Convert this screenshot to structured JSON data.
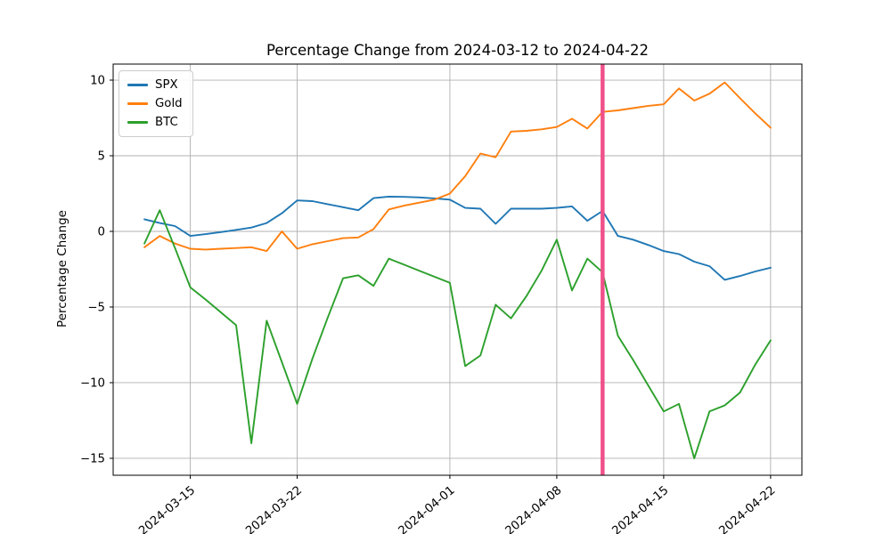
{
  "chart_data": {
    "type": "line",
    "title": "Percentage Change from 2024-03-12 to 2024-04-22",
    "xlabel": "",
    "ylabel": "Percentage Change",
    "grid": true,
    "legend_position": "upper left",
    "x": [
      "2024-03-12",
      "2024-03-13",
      "2024-03-14",
      "2024-03-15",
      "2024-03-16",
      "2024-03-17",
      "2024-03-18",
      "2024-03-19",
      "2024-03-20",
      "2024-03-21",
      "2024-03-22",
      "2024-03-23",
      "2024-03-24",
      "2024-03-25",
      "2024-03-26",
      "2024-03-27",
      "2024-03-28",
      "2024-03-29",
      "2024-03-30",
      "2024-03-31",
      "2024-04-01",
      "2024-04-02",
      "2024-04-03",
      "2024-04-04",
      "2024-04-05",
      "2024-04-06",
      "2024-04-07",
      "2024-04-08",
      "2024-04-09",
      "2024-04-10",
      "2024-04-11",
      "2024-04-12",
      "2024-04-13",
      "2024-04-14",
      "2024-04-15",
      "2024-04-16",
      "2024-04-17",
      "2024-04-18",
      "2024-04-19",
      "2024-04-20",
      "2024-04-21",
      "2024-04-22"
    ],
    "series": [
      {
        "name": "SPX",
        "color": "#1f77b4",
        "values": [
          0.8,
          0.55,
          0.35,
          -0.3,
          -0.18,
          -0.05,
          0.1,
          0.25,
          0.55,
          1.2,
          2.05,
          2.0,
          1.8,
          1.6,
          1.4,
          2.2,
          2.3,
          2.28,
          2.25,
          2.18,
          2.1,
          1.55,
          1.5,
          0.5,
          1.5,
          1.5,
          1.5,
          1.55,
          1.65,
          0.7,
          1.35,
          -0.3,
          -0.55,
          -0.9,
          -1.3,
          -1.5,
          -2.0,
          -2.3,
          -3.2,
          -2.95,
          -2.65,
          -2.4
        ]
      },
      {
        "name": "Gold",
        "color": "#ff7f0e",
        "values": [
          -1.05,
          -0.3,
          -0.8,
          -1.15,
          -1.2,
          -1.15,
          -1.1,
          -1.05,
          -1.3,
          0.0,
          -1.15,
          -0.85,
          -0.65,
          -0.45,
          -0.4,
          0.15,
          1.45,
          1.7,
          1.9,
          2.1,
          2.5,
          3.65,
          5.15,
          4.9,
          6.6,
          6.65,
          6.75,
          6.9,
          7.45,
          6.8,
          7.9,
          8.0,
          8.15,
          8.3,
          8.4,
          9.45,
          8.65,
          9.1,
          9.85,
          8.8,
          7.8,
          6.85
        ]
      },
      {
        "name": "BTC",
        "color": "#2ca02c",
        "values": [
          -0.8,
          1.4,
          -1.1,
          -3.7,
          -4.5,
          -5.35,
          -6.2,
          -14.0,
          -5.9,
          -8.65,
          -11.4,
          -8.4,
          -5.7,
          -3.1,
          -2.9,
          -3.6,
          -1.8,
          -2.2,
          -2.6,
          -3.0,
          -3.4,
          -8.9,
          -8.2,
          -4.85,
          -5.75,
          -4.3,
          -2.6,
          -0.55,
          -3.9,
          -1.8,
          -2.7,
          -6.9,
          -8.5,
          -10.2,
          -11.9,
          -11.4,
          -15.0,
          -11.9,
          -11.5,
          -10.65,
          -8.8,
          -7.2
        ]
      }
    ],
    "yticks": [
      10,
      5,
      0,
      -5,
      -10,
      -15
    ],
    "xticks": [
      "2024-03-15",
      "2024-03-22",
      "2024-04-01",
      "2024-04-08",
      "2024-04-15",
      "2024-04-22"
    ],
    "xlim_days": [
      -2.05,
      43.05
    ],
    "ylim": [
      -16.12,
      11.06
    ],
    "vline": {
      "x": "2024-04-11",
      "color": "#f0518a",
      "linewidth": 4.5
    },
    "colors": {
      "grid": "#b0b0b0",
      "spine": "#000000",
      "background": "#ffffff"
    }
  }
}
